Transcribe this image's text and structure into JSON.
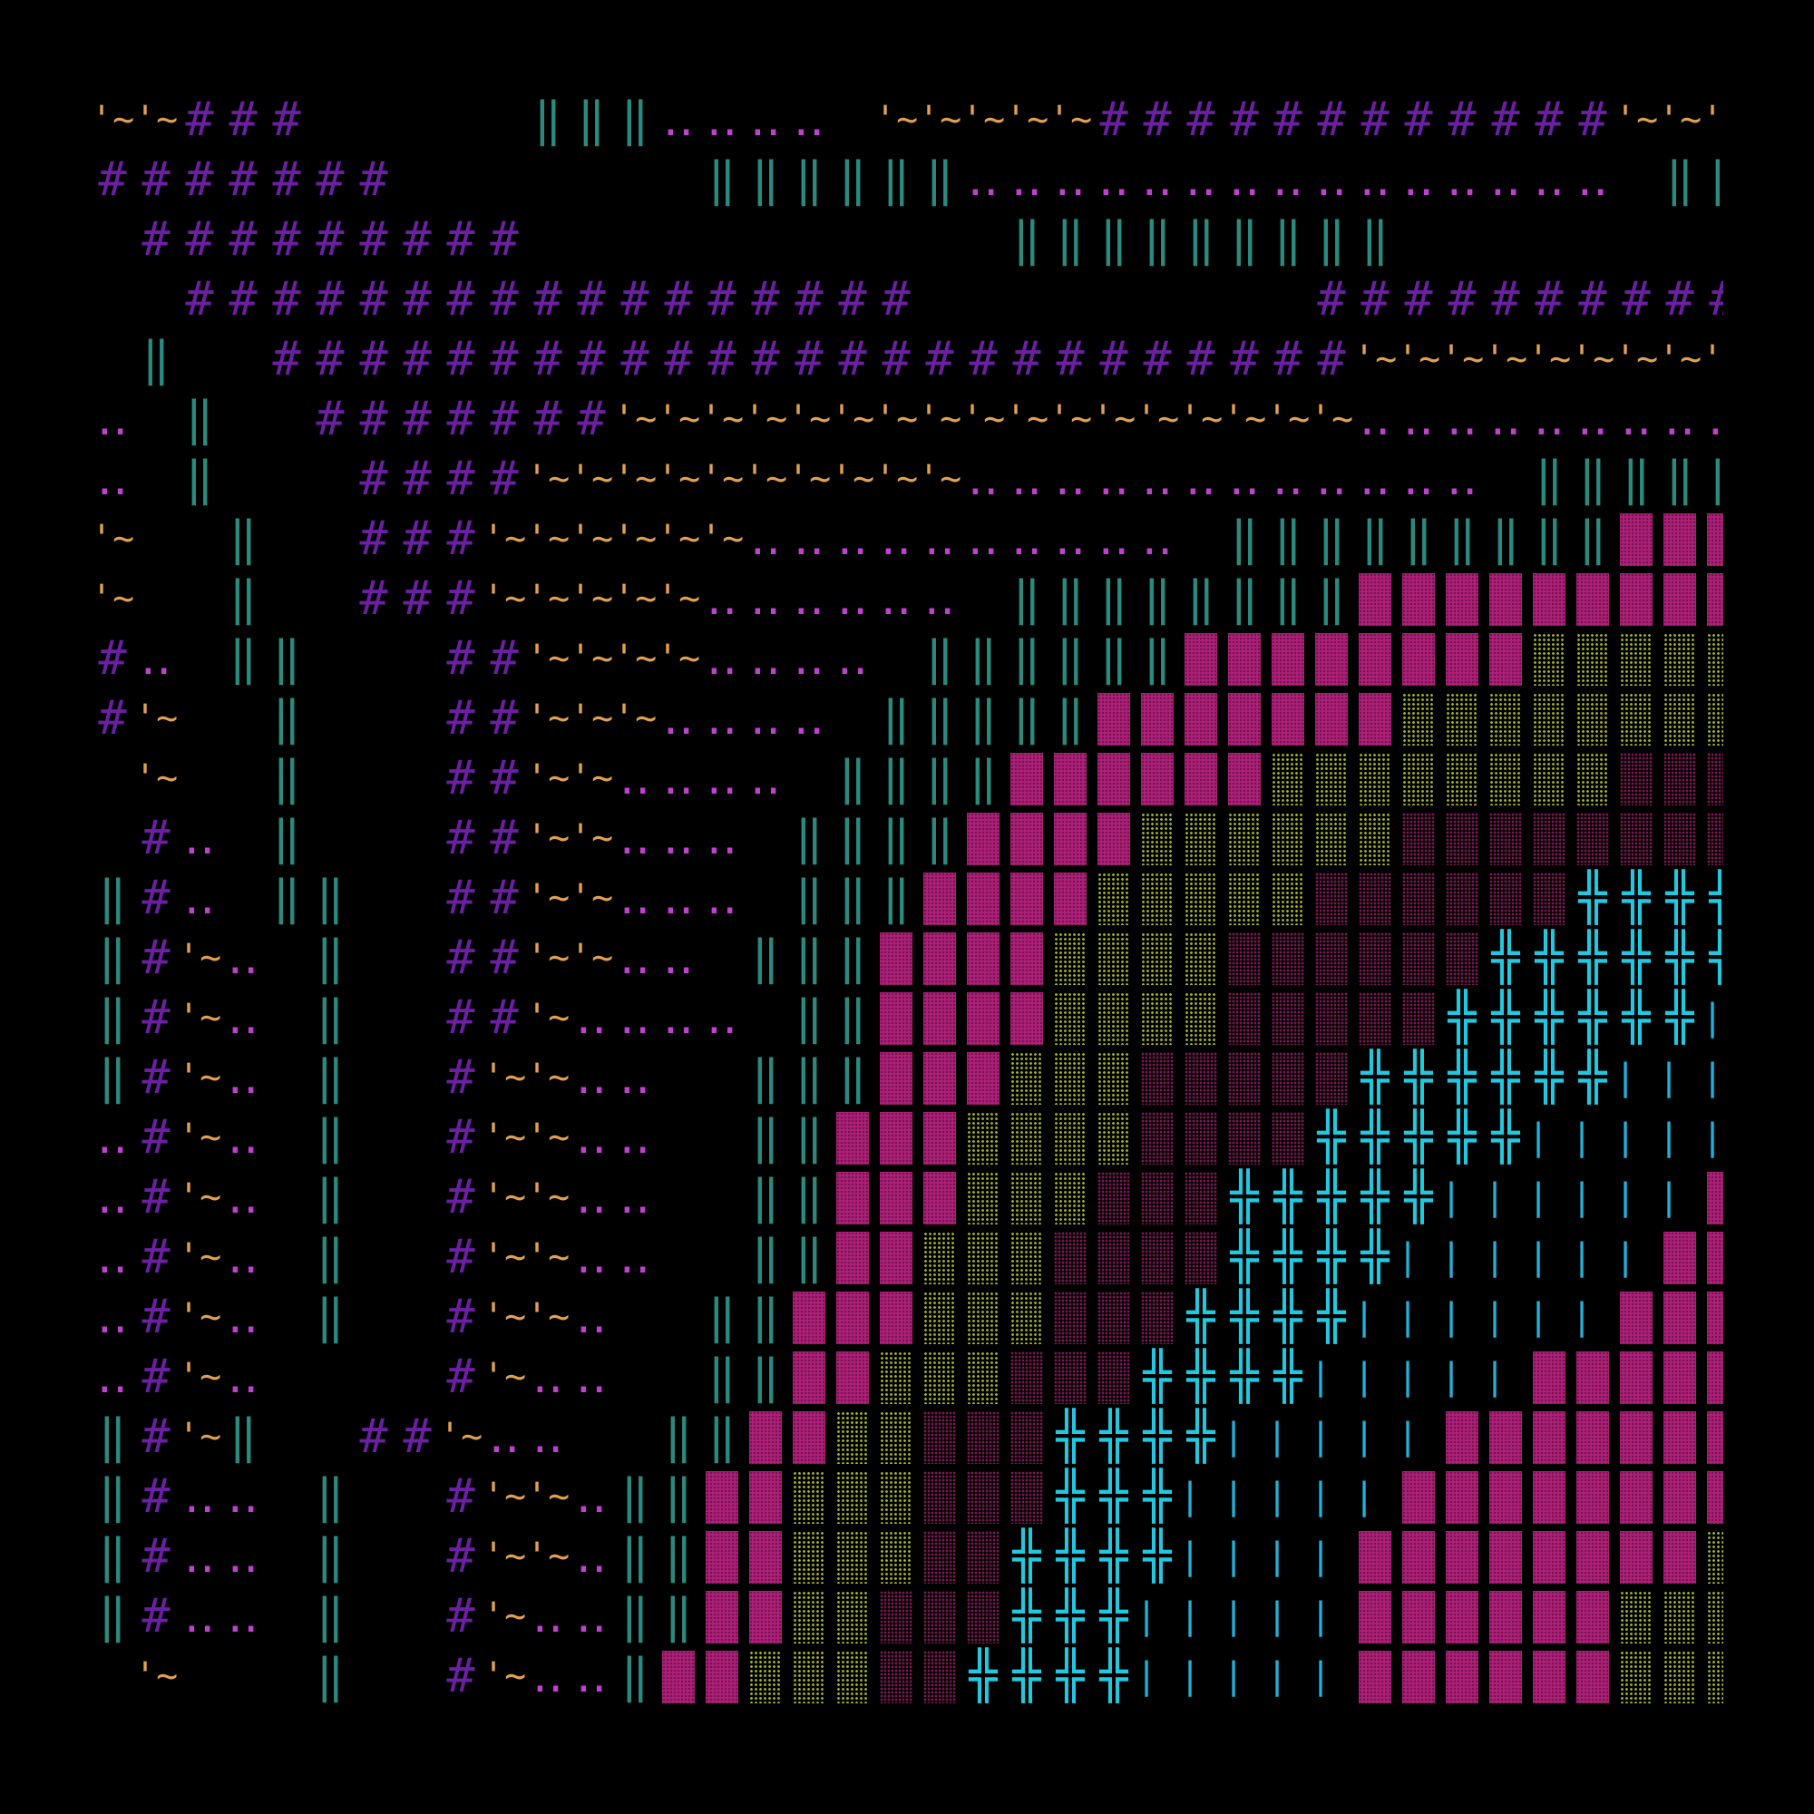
{
  "canvas": {
    "background": "#000000"
  },
  "palette": {
    "H": {
      "glyph": "#",
      "color": "#6b1fa3",
      "kind": "text"
    },
    "W": {
      "glyph": "'~'",
      "color": "#e0a050",
      "kind": "text-small"
    },
    "D": {
      "glyph": "‥",
      "color": "#c040d0",
      "kind": "text"
    },
    "V": {
      "glyph": "‖",
      "color": "#2a8a7e",
      "kind": "text"
    },
    "M": {
      "glyph": "",
      "color": "#b0207a",
      "kind": "block"
    },
    "Y": {
      "glyph": "",
      "color": "#a8b820",
      "kind": "stipple"
    },
    "P": {
      "glyph": "",
      "color": "#7a1a52",
      "kind": "stipple-dense"
    },
    "C": {
      "glyph": "╬",
      "color": "#20c8e0",
      "kind": "text"
    },
    "B": {
      "glyph": "|",
      "color": "#20b0d8",
      "kind": "text-bars"
    }
  },
  "rows": [
    "WWHHH.....VVVDDDD.WWWWWHHHHHHHHHHHHWWWWW",
    "HHHHHHH.......VVVVVVDDDDDDDDDDDDDDD.VVV.",
    ".HHHHHHHHH...........VVVVVVVVV..........",
    "..HHHHHHHHHHHHHHHHH.........HHHHHHHHHHHW",
    ".V..HHHHHHHHHHHHHHHHHHHHHHHHHWWWWWWWWWWW",
    "D.V..HHHHHHHWWWWWWWWWWWWWWWWWDDDDDDDDDDD",
    "D.V...HHHHWWWWWWWWWWDDDDDDDDDDDD.VVVVVVV",
    "W..V..HHHWWWWWWDDDDDDDDDD.VVVVVVVVVMMMMM",
    "W..V..HHHWWWWWDDDDDD.VVVVVVVVMMMMMMMMMMY",
    "HD.VV...HHWWWWDDDD.VVVVVVMMMMMMMMYYYYYYY",
    "HW..V...HHWWWDDDD.VVVVVMMMMMMMYYYYYYYYPP",
    ".W..V...HHWWDDDD.VVVVMMMMMMYYYYYYYYPPPPP",
    ".HD.V...HHWWDDD.VVVVMMMMYYYYYYPPPPPPPPCC",
    "VHD.VV..HHWWDDD.VVVMMMMYYYYYPPPPPPCCCCCC",
    "VHWD.V..HHWWDD.VVVMMMMYYYYPPPPPPCCCCCCCC",
    "VHWD.V..HHWDDDD.VVMMMMYYYYPPPPPCCCCCCBBB",
    "VHWD.V..HWWDD..VVVMMMYYYPPPPPCCCCCCBBBBB",
    "DHWD.V..HWWDD..VVMMMYYYYPPPPCCCCCBBBBBBB",
    "DHWD.V..HWWDD..VVMMMYYYPPPCCCCCBBBBBBMMM",
    "DHWD.V..HWWDD..VVMMYYYPPPPCCCCBBBBBBMMMM",
    "DHWD.V..HWWD..VVMMMYYYPPPCCCCBBBBBBMMMMM",
    "DHWD....HWDD..VVMMYYYPPPCCCCBBBBBMMMMMMM",
    "VHWV..HHWDD..VVMMYYPPPCCCCBBBBBMMMMMMMMM",
    "VHDD.V..HWWDVVMMYYYPPPCCCBBBBBMMMMMMMMYY",
    "VHDD.V..HWWDVVMMYYYPPCCCCBBBBMMMMMMMMYYY",
    "VHDD.V..HWDDVVMMYYPPPCCCBBBBBMMMMMMYYYYY",
    ".W...V..HWDDVMMYYYPPCCCCBBBBBMMMMMMYYYYY"
  ]
}
